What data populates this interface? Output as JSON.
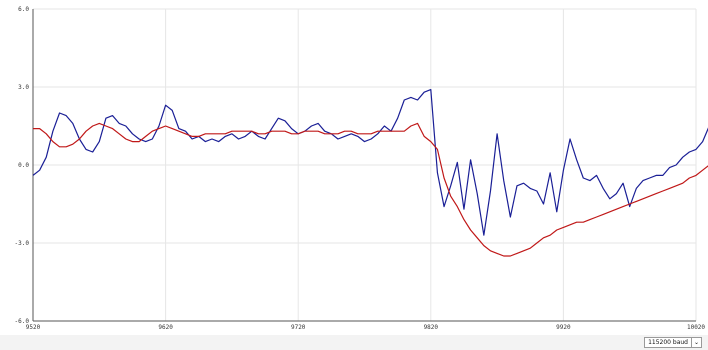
{
  "chart_data": {
    "type": "line",
    "title": "",
    "xlabel": "",
    "ylabel": "",
    "xlim": [
      9520,
      10020
    ],
    "ylim": [
      -6.0,
      6.0
    ],
    "x_ticks": [
      "9520",
      "9620",
      "9720",
      "9820",
      "9920",
      "10020"
    ],
    "y_ticks": [
      "6.0",
      "3.0",
      "0.0",
      "-3.0",
      "-6.0"
    ],
    "grid": true,
    "legend": "none",
    "x_step": 5,
    "series": [
      {
        "color": "#1a1f96",
        "values": [
          -0.4,
          -0.2,
          0.3,
          1.3,
          2.0,
          1.9,
          1.6,
          1.0,
          0.6,
          0.5,
          0.9,
          1.8,
          1.9,
          1.6,
          1.5,
          1.2,
          1.0,
          0.9,
          1.0,
          1.5,
          2.3,
          2.1,
          1.4,
          1.3,
          1.0,
          1.1,
          0.9,
          1.0,
          0.9,
          1.1,
          1.2,
          1.0,
          1.1,
          1.3,
          1.1,
          1.0,
          1.4,
          1.8,
          1.7,
          1.4,
          1.2,
          1.3,
          1.5,
          1.6,
          1.3,
          1.2,
          1.0,
          1.1,
          1.2,
          1.1,
          0.9,
          1.0,
          1.2,
          1.5,
          1.3,
          1.8,
          2.5,
          2.6,
          2.5,
          2.8,
          2.9,
          -0.3,
          -1.6,
          -0.8,
          0.1,
          -1.7,
          0.2,
          -1.1,
          -2.7,
          -1.0,
          1.2,
          -0.6,
          -2.0,
          -0.8,
          -0.7,
          -0.9,
          -1.0,
          -1.5,
          -0.3,
          -1.8,
          -0.2,
          1.0,
          0.2,
          -0.5,
          -0.6,
          -0.4,
          -0.9,
          -1.3,
          -1.1,
          -0.7,
          -1.6,
          -0.9,
          -0.6,
          -0.5,
          -0.4,
          -0.4,
          -0.1,
          0.0,
          0.3,
          0.5,
          0.6,
          0.9,
          1.5,
          1.9,
          1.6
        ]
      },
      {
        "color": "#c01818",
        "values": [
          1.4,
          1.4,
          1.2,
          0.9,
          0.7,
          0.7,
          0.8,
          1.0,
          1.3,
          1.5,
          1.6,
          1.5,
          1.4,
          1.2,
          1.0,
          0.9,
          0.9,
          1.1,
          1.3,
          1.4,
          1.5,
          1.4,
          1.3,
          1.2,
          1.1,
          1.1,
          1.2,
          1.2,
          1.2,
          1.2,
          1.3,
          1.3,
          1.3,
          1.3,
          1.2,
          1.2,
          1.3,
          1.3,
          1.3,
          1.2,
          1.2,
          1.3,
          1.3,
          1.3,
          1.2,
          1.2,
          1.2,
          1.3,
          1.3,
          1.2,
          1.2,
          1.2,
          1.3,
          1.3,
          1.3,
          1.3,
          1.3,
          1.5,
          1.6,
          1.1,
          0.9,
          0.6,
          -0.5,
          -1.2,
          -1.6,
          -2.1,
          -2.5,
          -2.8,
          -3.1,
          -3.3,
          -3.4,
          -3.5,
          -3.5,
          -3.4,
          -3.3,
          -3.2,
          -3.0,
          -2.8,
          -2.7,
          -2.5,
          -2.4,
          -2.3,
          -2.2,
          -2.2,
          -2.1,
          -2.0,
          -1.9,
          -1.8,
          -1.7,
          -1.6,
          -1.5,
          -1.4,
          -1.3,
          -1.2,
          -1.1,
          -1.0,
          -0.9,
          -0.8,
          -0.7,
          -0.5,
          -0.4,
          -0.2,
          0.0,
          0.0,
          -0.1
        ]
      }
    ]
  },
  "bottom_bar": {
    "baud_value": "115200 baud",
    "baud_arrow": "⌄"
  }
}
